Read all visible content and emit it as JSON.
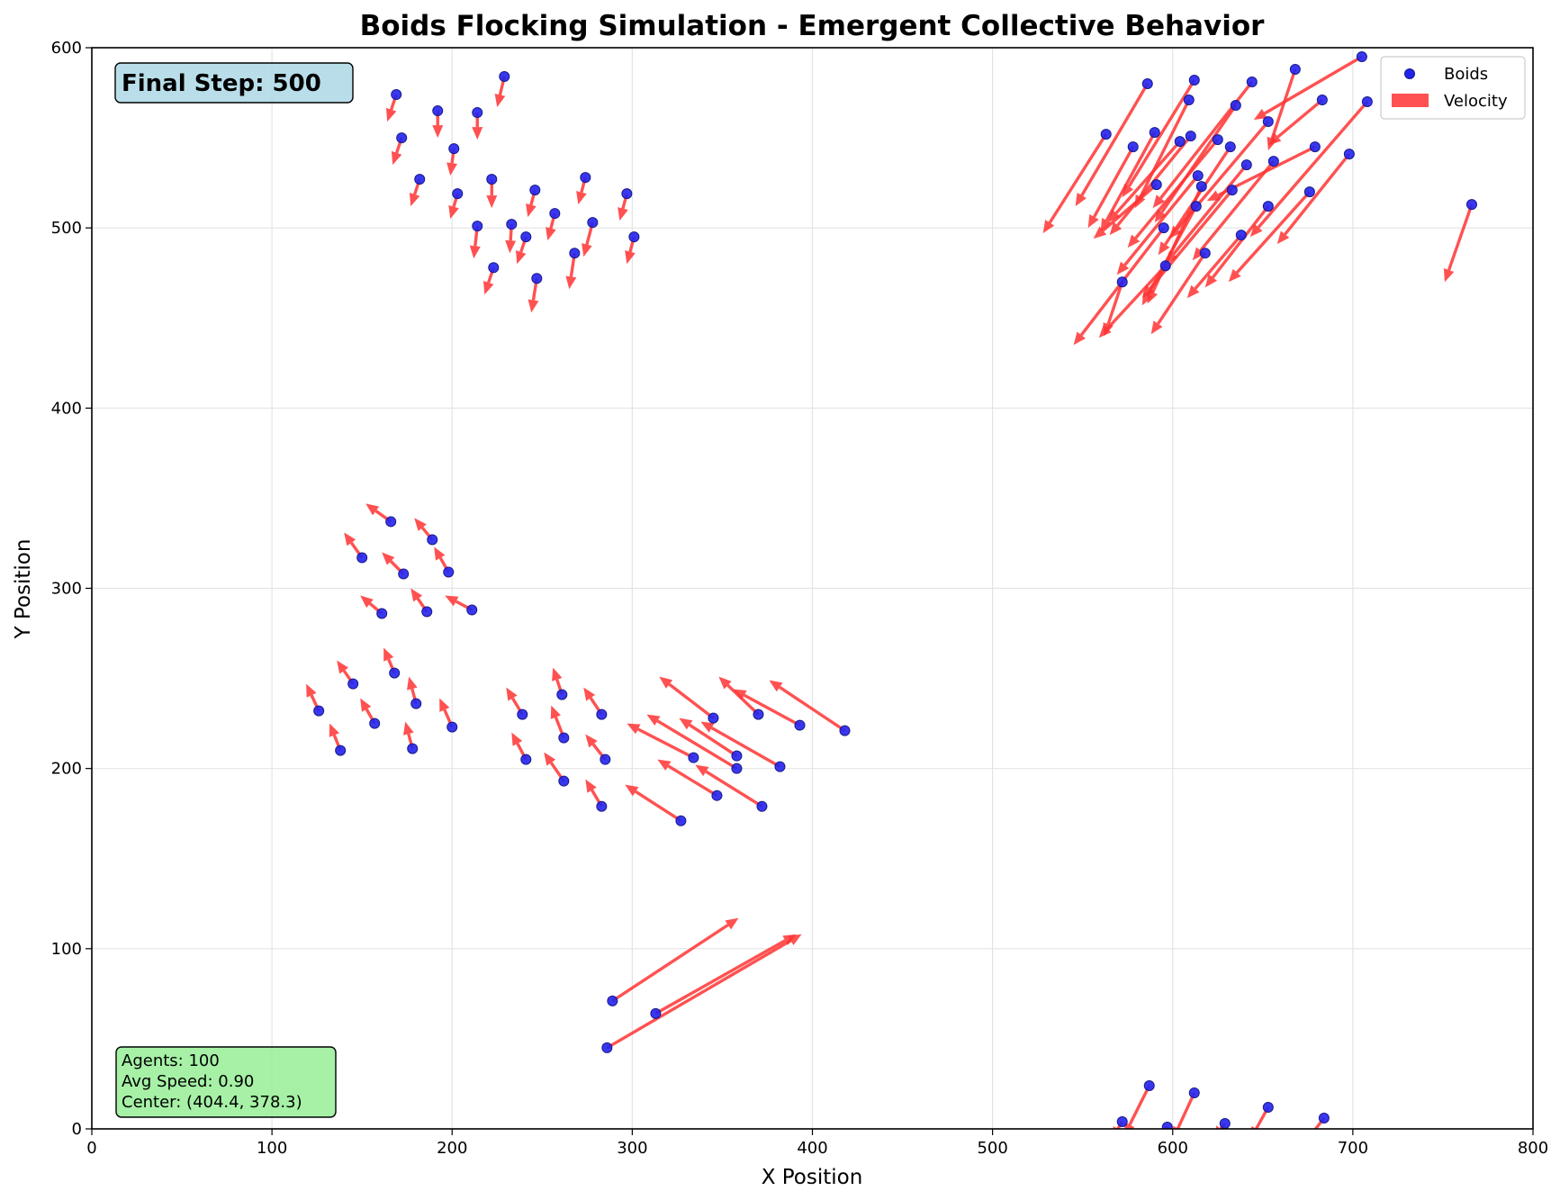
{
  "chart_data": {
    "type": "scatter",
    "title": "Boids Flocking Simulation - Emergent Collective Behavior",
    "xlabel": "X Position",
    "ylabel": "Y Position",
    "xlim": [
      0,
      800
    ],
    "ylim": [
      0,
      600
    ],
    "xticks": [
      "0",
      "100",
      "200",
      "300",
      "400",
      "500",
      "600",
      "700",
      "800"
    ],
    "yticks": [
      "0",
      "100",
      "200",
      "300",
      "400",
      "500",
      "600"
    ],
    "grid": true,
    "legend": {
      "placement": "top-right",
      "entries": [
        "Boids",
        "Velocity"
      ]
    },
    "colors": {
      "boids": "#2222ee",
      "boid_edge": "#1a1a8a",
      "velocity": "#ff3333"
    },
    "step_badge": "Final Step: 500",
    "stats": [
      "Agents: 100",
      "Avg Speed: 0.90",
      "Center: (404.4, 378.3)"
    ],
    "boids": [
      {
        "x": 169,
        "y": 574,
        "vx": -5,
        "vy": -15
      },
      {
        "x": 172,
        "y": 550,
        "vx": -5,
        "vy": -15
      },
      {
        "x": 182,
        "y": 527,
        "vx": -5,
        "vy": -15
      },
      {
        "x": 192,
        "y": 565,
        "vx": 0,
        "vy": -15
      },
      {
        "x": 201,
        "y": 544,
        "vx": -2,
        "vy": -15
      },
      {
        "x": 203,
        "y": 519,
        "vx": -4,
        "vy": -14
      },
      {
        "x": 214,
        "y": 564,
        "vx": 0,
        "vy": -15
      },
      {
        "x": 222,
        "y": 527,
        "vx": 0,
        "vy": -16
      },
      {
        "x": 229,
        "y": 584,
        "vx": -4,
        "vy": -17
      },
      {
        "x": 214,
        "y": 501,
        "vx": -2,
        "vy": -18
      },
      {
        "x": 223,
        "y": 478,
        "vx": -5,
        "vy": -15
      },
      {
        "x": 233,
        "y": 502,
        "vx": -1,
        "vy": -16
      },
      {
        "x": 241,
        "y": 495,
        "vx": -5,
        "vy": -15
      },
      {
        "x": 246,
        "y": 521,
        "vx": -4,
        "vy": -15
      },
      {
        "x": 247,
        "y": 472,
        "vx": -3,
        "vy": -19
      },
      {
        "x": 257,
        "y": 508,
        "vx": -4,
        "vy": -15
      },
      {
        "x": 268,
        "y": 486,
        "vx": -3,
        "vy": -20
      },
      {
        "x": 274,
        "y": 528,
        "vx": -4,
        "vy": -15
      },
      {
        "x": 278,
        "y": 503,
        "vx": -5,
        "vy": -19
      },
      {
        "x": 297,
        "y": 519,
        "vx": -4,
        "vy": -15
      },
      {
        "x": 301,
        "y": 495,
        "vx": -4,
        "vy": -15
      },
      {
        "x": 563,
        "y": 552,
        "vx": -35,
        "vy": -55
      },
      {
        "x": 578,
        "y": 545,
        "vx": -25,
        "vy": -45
      },
      {
        "x": 586,
        "y": 580,
        "vx": -40,
        "vy": -68
      },
      {
        "x": 590,
        "y": 553,
        "vx": -30,
        "vy": -55
      },
      {
        "x": 591,
        "y": 524,
        "vx": -35,
        "vy": -30
      },
      {
        "x": 596,
        "y": 479,
        "vx": -37,
        "vy": -40
      },
      {
        "x": 604,
        "y": 548,
        "vx": -40,
        "vy": -45
      },
      {
        "x": 609,
        "y": 571,
        "vx": -30,
        "vy": -60
      },
      {
        "x": 610,
        "y": 551,
        "vx": -45,
        "vy": -55
      },
      {
        "x": 612,
        "y": 582,
        "vx": -40,
        "vy": -65
      },
      {
        "x": 613,
        "y": 512,
        "vx": -30,
        "vy": -55
      },
      {
        "x": 614,
        "y": 529,
        "vx": -45,
        "vy": -55
      },
      {
        "x": 616,
        "y": 523,
        "vx": -30,
        "vy": -65
      },
      {
        "x": 618,
        "y": 486,
        "vx": -30,
        "vy": -45
      },
      {
        "x": 625,
        "y": 549,
        "vx": -50,
        "vy": -60
      },
      {
        "x": 632,
        "y": 545,
        "vx": -40,
        "vy": -60
      },
      {
        "x": 633,
        "y": 521,
        "vx": -50,
        "vy": -60
      },
      {
        "x": 635,
        "y": 568,
        "vx": -45,
        "vy": -65
      },
      {
        "x": 638,
        "y": 496,
        "vx": -30,
        "vy": -35
      },
      {
        "x": 641,
        "y": 535,
        "vx": -45,
        "vy": -55
      },
      {
        "x": 644,
        "y": 581,
        "vx": -55,
        "vy": -70
      },
      {
        "x": 653,
        "y": 512,
        "vx": -35,
        "vy": -45
      },
      {
        "x": 653,
        "y": 559,
        "vx": -55,
        "vy": -65
      },
      {
        "x": 656,
        "y": 537,
        "vx": -45,
        "vy": -55
      },
      {
        "x": 668,
        "y": 588,
        "vx": -15,
        "vy": -45
      },
      {
        "x": 676,
        "y": 520,
        "vx": -45,
        "vy": -50
      },
      {
        "x": 679,
        "y": 545,
        "vx": -60,
        "vy": -30
      },
      {
        "x": 683,
        "y": 571,
        "vx": -30,
        "vy": -25
      },
      {
        "x": 698,
        "y": 541,
        "vx": -40,
        "vy": -50
      },
      {
        "x": 705,
        "y": 595,
        "vx": -60,
        "vy": -35
      },
      {
        "x": 708,
        "y": 570,
        "vx": -65,
        "vy": -75
      },
      {
        "x": 595,
        "y": 500,
        "vx": -50,
        "vy": -65
      },
      {
        "x": 572,
        "y": 470,
        "vx": -10,
        "vy": -30
      },
      {
        "x": 766,
        "y": 513,
        "vx": -15,
        "vy": -43
      },
      {
        "x": 166,
        "y": 337,
        "vx": -14,
        "vy": 10
      },
      {
        "x": 150,
        "y": 317,
        "vx": -10,
        "vy": 14
      },
      {
        "x": 173,
        "y": 308,
        "vx": -12,
        "vy": 12
      },
      {
        "x": 189,
        "y": 327,
        "vx": -10,
        "vy": 12
      },
      {
        "x": 198,
        "y": 309,
        "vx": -8,
        "vy": 14
      },
      {
        "x": 161,
        "y": 286,
        "vx": -12,
        "vy": 10
      },
      {
        "x": 186,
        "y": 287,
        "vx": -9,
        "vy": 13
      },
      {
        "x": 211,
        "y": 288,
        "vx": -15,
        "vy": 8
      },
      {
        "x": 126,
        "y": 232,
        "vx": -7,
        "vy": 15
      },
      {
        "x": 138,
        "y": 210,
        "vx": -6,
        "vy": 15
      },
      {
        "x": 145,
        "y": 247,
        "vx": -9,
        "vy": 13
      },
      {
        "x": 157,
        "y": 225,
        "vx": -8,
        "vy": 14
      },
      {
        "x": 168,
        "y": 253,
        "vx": -6,
        "vy": 14
      },
      {
        "x": 178,
        "y": 211,
        "vx": -4,
        "vy": 15
      },
      {
        "x": 180,
        "y": 236,
        "vx": -4,
        "vy": 15
      },
      {
        "x": 200,
        "y": 223,
        "vx": -7,
        "vy": 16
      },
      {
        "x": 239,
        "y": 230,
        "vx": -9,
        "vy": 15
      },
      {
        "x": 241,
        "y": 205,
        "vx": -8,
        "vy": 15
      },
      {
        "x": 261,
        "y": 241,
        "vx": -5,
        "vy": 15
      },
      {
        "x": 262,
        "y": 217,
        "vx": -7,
        "vy": 18
      },
      {
        "x": 262,
        "y": 193,
        "vx": -11,
        "vy": 16
      },
      {
        "x": 283,
        "y": 230,
        "vx": -10,
        "vy": 15
      },
      {
        "x": 285,
        "y": 205,
        "vx": -11,
        "vy": 14
      },
      {
        "x": 283,
        "y": 179,
        "vx": -9,
        "vy": 15
      },
      {
        "x": 327,
        "y": 171,
        "vx": -31,
        "vy": 20
      },
      {
        "x": 334,
        "y": 206,
        "vx": -37,
        "vy": 19
      },
      {
        "x": 345,
        "y": 228,
        "vx": -30,
        "vy": 23
      },
      {
        "x": 347,
        "y": 185,
        "vx": -33,
        "vy": 20
      },
      {
        "x": 358,
        "y": 207,
        "vx": -32,
        "vy": 21
      },
      {
        "x": 358,
        "y": 200,
        "vx": -50,
        "vy": 30
      },
      {
        "x": 370,
        "y": 230,
        "vx": -22,
        "vy": 21
      },
      {
        "x": 372,
        "y": 179,
        "vx": -37,
        "vy": 23
      },
      {
        "x": 382,
        "y": 201,
        "vx": -44,
        "vy": 25
      },
      {
        "x": 393,
        "y": 224,
        "vx": -37,
        "vy": 20
      },
      {
        "x": 418,
        "y": 221,
        "vx": -42,
        "vy": 28
      },
      {
        "x": 289,
        "y": 71,
        "vx": 70,
        "vy": 46
      },
      {
        "x": 313,
        "y": 64,
        "vx": 78,
        "vy": 44
      },
      {
        "x": 286,
        "y": 45,
        "vx": 108,
        "vy": 63
      },
      {
        "x": 572,
        "y": 4,
        "vx": -5,
        "vy": -8
      },
      {
        "x": 587,
        "y": 24,
        "vx": -14,
        "vy": -28
      },
      {
        "x": 597,
        "y": 1,
        "vx": -5,
        "vy": -6
      },
      {
        "x": 612,
        "y": 20,
        "vx": -12,
        "vy": -26
      },
      {
        "x": 629,
        "y": 3,
        "vx": -5,
        "vy": -6
      },
      {
        "x": 653,
        "y": 12,
        "vx": -10,
        "vy": -18
      },
      {
        "x": 684,
        "y": 6,
        "vx": -14,
        "vy": -18
      }
    ]
  }
}
